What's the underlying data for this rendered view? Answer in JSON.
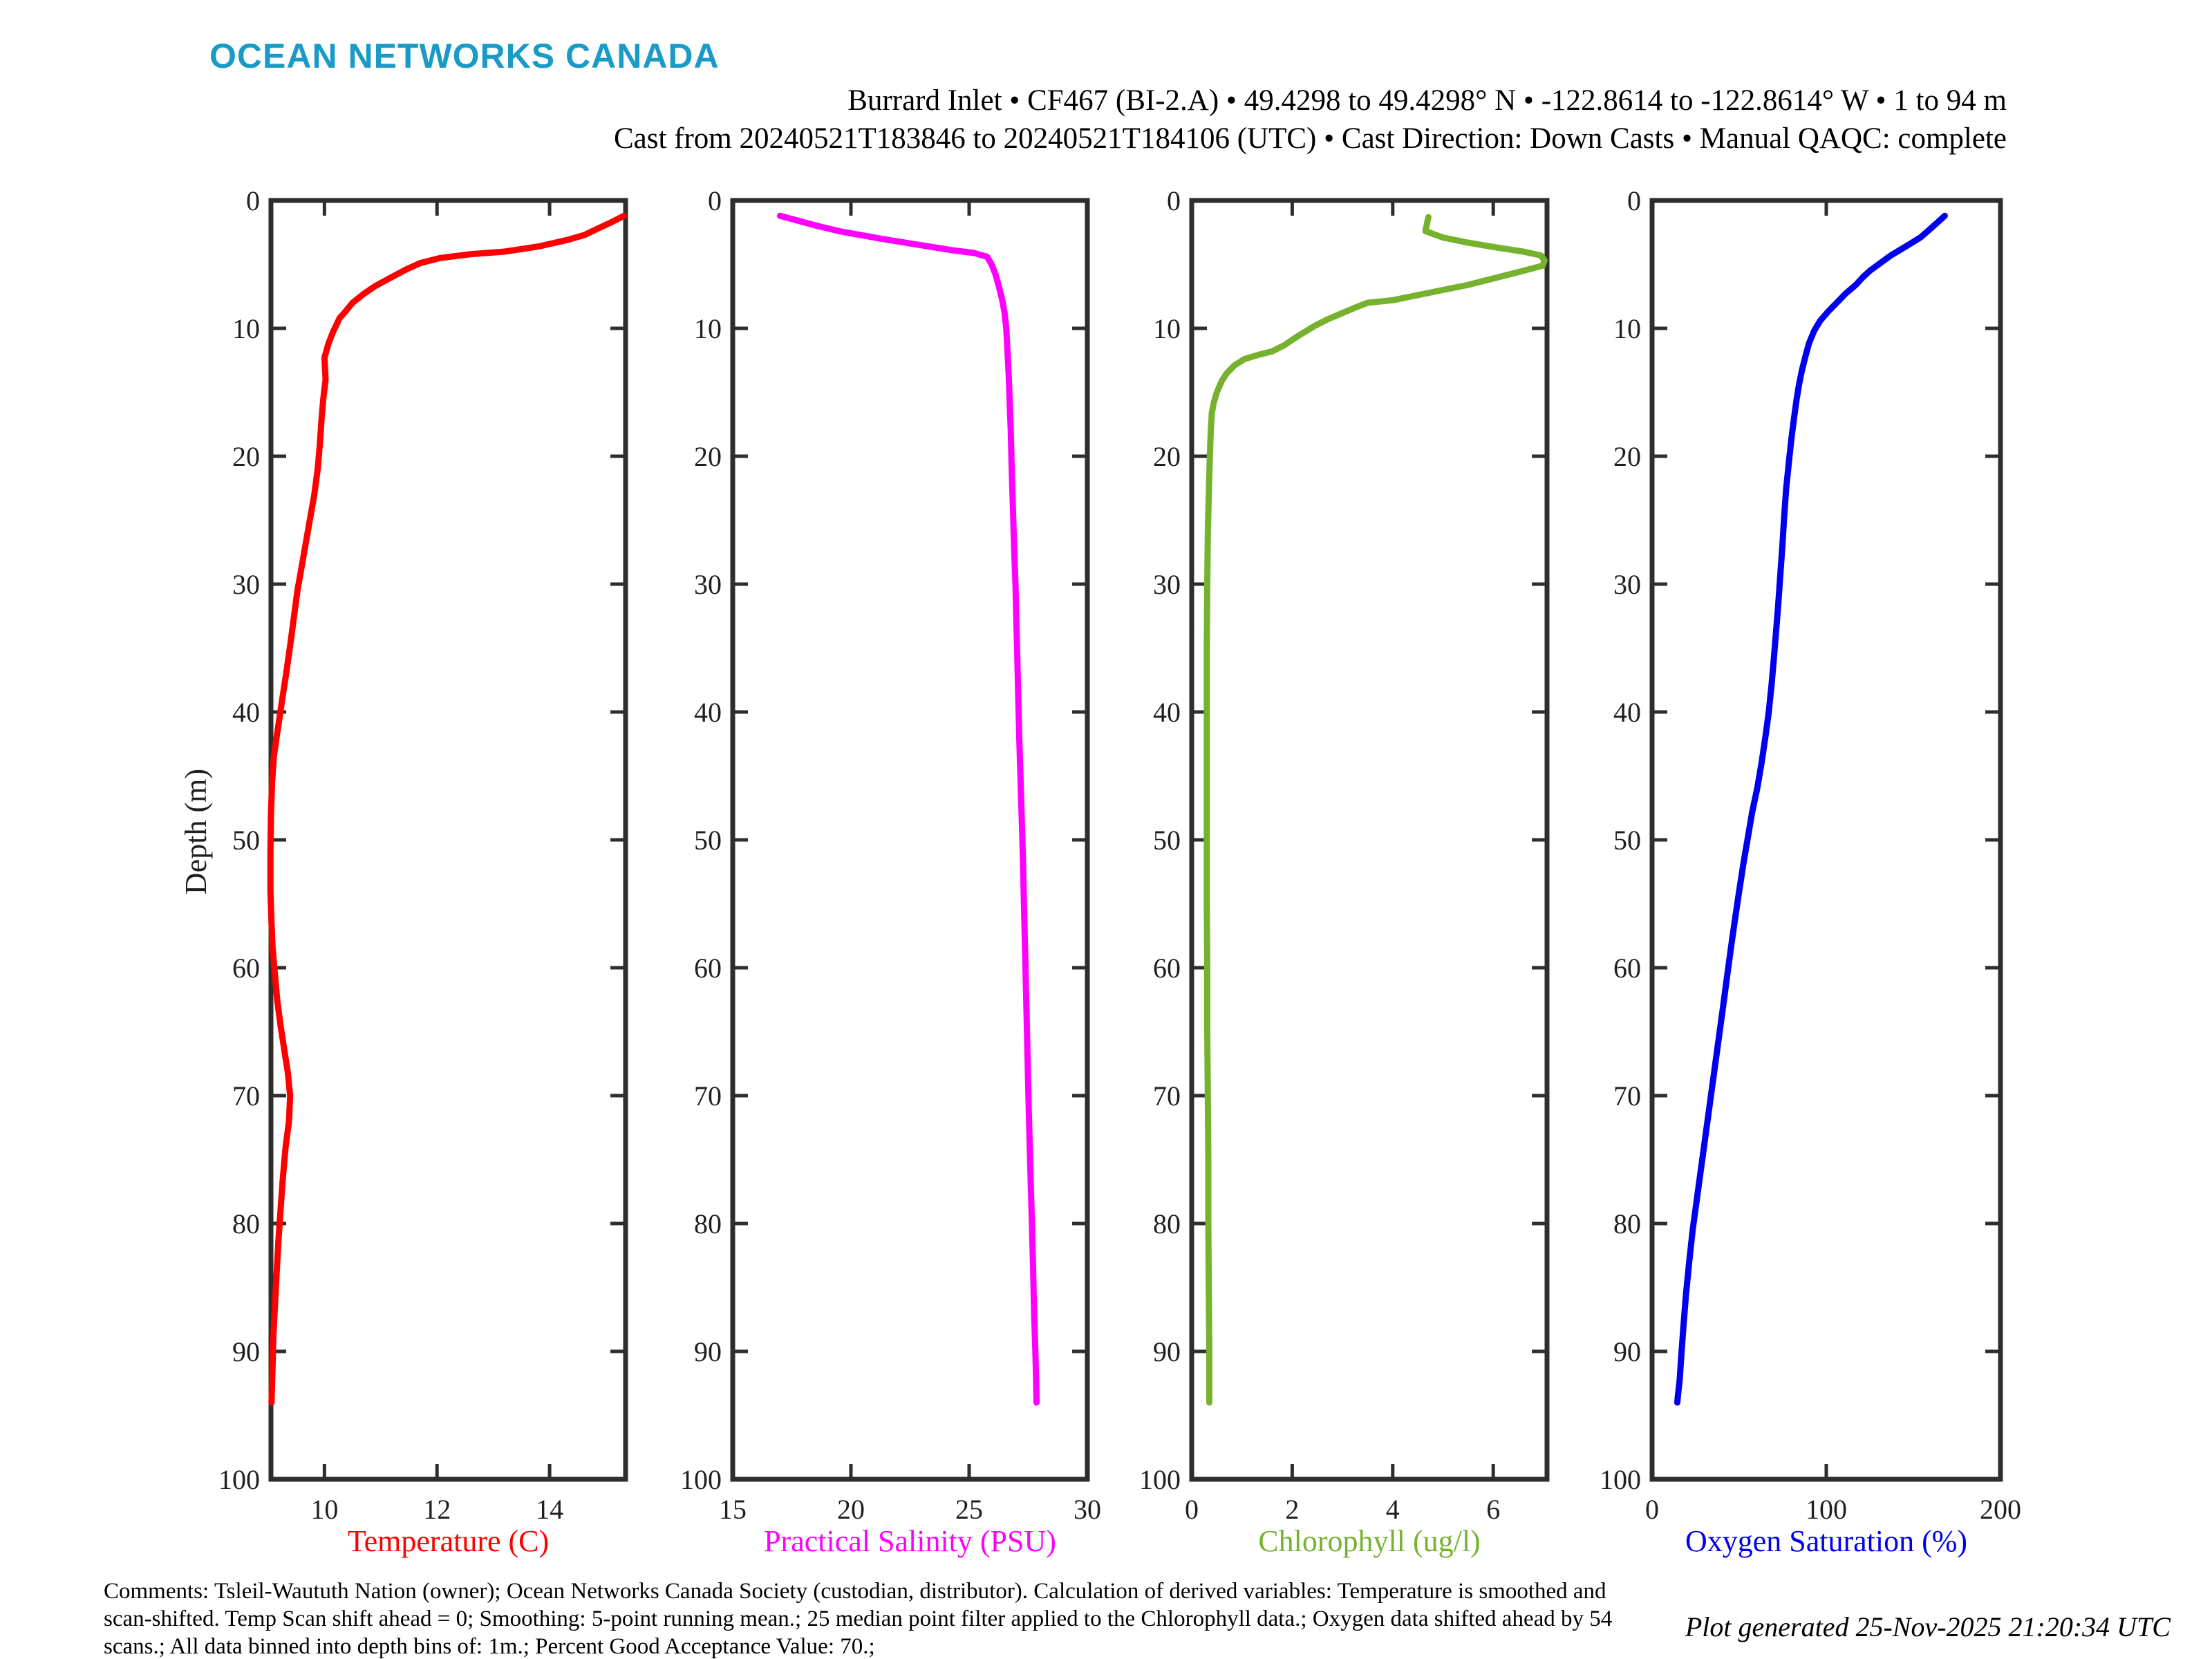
{
  "logo": {
    "text": "OCEAN NETWORKS CANADA",
    "color": "#1a9bc7"
  },
  "header": {
    "title_line1": "Burrard Inlet • CF467 (BI-2.A) • 49.4298 to 49.4298° N • -122.8614 to -122.8614° W • 1 to 94 m",
    "title_line2": "Cast from 20240521T183846 to 20240521T184106 (UTC) • Cast Direction: Down Casts • Manual QAQC: complete"
  },
  "footer": {
    "comment_line1": "Comments: Tsleil-Waututh Nation (owner); Ocean Networks Canada Society (custodian, distributor). Calculation of derived variables: Temperature is smoothed and",
    "comment_line2": "scan-shifted. Temp Scan shift ahead = 0; Smoothing: 5-point running mean.; 25 median point filter applied to the Chlorophyll data.; Oxygen data shifted ahead by 54",
    "comment_line3": "scans.; All data binned into depth bins of: 1m.; Percent Good Acceptance Value: 70.;",
    "generated": "Plot generated 25-Nov-2025 21:20:34 UTC"
  },
  "axes_style": {
    "frame_color": "#2e2e2e",
    "tick_label_color": "#1f1f1f",
    "grid": false
  },
  "chart_data": [
    {
      "name": "temperature",
      "type": "line",
      "xlabel": "Temperature (C)",
      "color": "#ff0000",
      "xlim": [
        9.05,
        15.35
      ],
      "xticks": [
        10,
        12,
        14
      ],
      "ylabel": "Depth (m)",
      "ylim": [
        0,
        100
      ],
      "yticks": [
        0,
        10,
        20,
        30,
        40,
        50,
        60,
        70,
        80,
        90,
        100
      ],
      "y_increases_downward": true,
      "points": [
        [
          15.32,
          1.2
        ],
        [
          15.1,
          1.7
        ],
        [
          14.9,
          2.1
        ],
        [
          14.62,
          2.7
        ],
        [
          14.3,
          3.1
        ],
        [
          13.8,
          3.6
        ],
        [
          13.2,
          4.0
        ],
        [
          12.6,
          4.2
        ],
        [
          12.05,
          4.5
        ],
        [
          11.7,
          4.9
        ],
        [
          11.45,
          5.4
        ],
        [
          11.15,
          6.1
        ],
        [
          10.9,
          6.7
        ],
        [
          10.7,
          7.3
        ],
        [
          10.5,
          8.0
        ],
        [
          10.35,
          8.8
        ],
        [
          10.27,
          9.2
        ],
        [
          10.15,
          10.3
        ],
        [
          10.07,
          11.2
        ],
        [
          10.0,
          12.3
        ],
        [
          10.02,
          14.0
        ],
        [
          9.98,
          15.5
        ],
        [
          9.95,
          17.0
        ],
        [
          9.92,
          19.0
        ],
        [
          9.88,
          21.0
        ],
        [
          9.82,
          23.0
        ],
        [
          9.74,
          25.0
        ],
        [
          9.66,
          27.0
        ],
        [
          9.58,
          29.0
        ],
        [
          9.52,
          30.5
        ],
        [
          9.46,
          32.5
        ],
        [
          9.4,
          34.5
        ],
        [
          9.32,
          37.0
        ],
        [
          9.25,
          39.0
        ],
        [
          9.2,
          40.5
        ],
        [
          9.15,
          42.0
        ],
        [
          9.1,
          43.5
        ],
        [
          9.07,
          45.5
        ],
        [
          9.05,
          48.0
        ],
        [
          9.04,
          51.0
        ],
        [
          9.04,
          54.0
        ],
        [
          9.06,
          56.5
        ],
        [
          9.08,
          58.5
        ],
        [
          9.12,
          60.5
        ],
        [
          9.16,
          62.5
        ],
        [
          9.22,
          64.5
        ],
        [
          9.29,
          66.5
        ],
        [
          9.35,
          68.2
        ],
        [
          9.39,
          70.0
        ],
        [
          9.37,
          72.0
        ],
        [
          9.31,
          74.0
        ],
        [
          9.26,
          76.5
        ],
        [
          9.22,
          79.0
        ],
        [
          9.18,
          81.5
        ],
        [
          9.15,
          84.0
        ],
        [
          9.12,
          86.5
        ],
        [
          9.09,
          89.0
        ],
        [
          9.08,
          91.0
        ],
        [
          9.07,
          92.5
        ],
        [
          9.06,
          94.0
        ]
      ]
    },
    {
      "name": "salinity",
      "type": "line",
      "xlabel": "Practical Salinity (PSU)",
      "color": "#ff00ff",
      "xlim": [
        15,
        30
      ],
      "xticks": [
        15,
        20,
        25,
        30
      ],
      "ylim": [
        0,
        100
      ],
      "yticks": [
        0,
        10,
        20,
        30,
        40,
        50,
        60,
        70,
        80,
        90,
        100
      ],
      "y_increases_downward": true,
      "points": [
        [
          17.0,
          1.2
        ],
        [
          17.8,
          1.6
        ],
        [
          18.6,
          2.0
        ],
        [
          19.5,
          2.4
        ],
        [
          20.4,
          2.7
        ],
        [
          21.3,
          3.0
        ],
        [
          22.3,
          3.3
        ],
        [
          23.3,
          3.6
        ],
        [
          24.3,
          3.9
        ],
        [
          25.2,
          4.1
        ],
        [
          25.76,
          4.4
        ],
        [
          25.95,
          5.0
        ],
        [
          26.12,
          5.8
        ],
        [
          26.27,
          6.8
        ],
        [
          26.4,
          7.8
        ],
        [
          26.5,
          8.8
        ],
        [
          26.57,
          10.0
        ],
        [
          26.63,
          12.0
        ],
        [
          26.68,
          14.0
        ],
        [
          26.72,
          16.0
        ],
        [
          26.76,
          18.0
        ],
        [
          26.8,
          21.0
        ],
        [
          26.85,
          24.0
        ],
        [
          26.9,
          27.0
        ],
        [
          26.96,
          30.0
        ],
        [
          27.0,
          33.0
        ],
        [
          27.04,
          36.0
        ],
        [
          27.08,
          39.0
        ],
        [
          27.12,
          42.0
        ],
        [
          27.17,
          45.0
        ],
        [
          27.22,
          48.0
        ],
        [
          27.27,
          51.0
        ],
        [
          27.32,
          55.0
        ],
        [
          27.37,
          59.0
        ],
        [
          27.42,
          63.0
        ],
        [
          27.47,
          67.0
        ],
        [
          27.52,
          71.0
        ],
        [
          27.58,
          75.0
        ],
        [
          27.64,
          79.0
        ],
        [
          27.7,
          83.0
        ],
        [
          27.75,
          87.0
        ],
        [
          27.8,
          90.0
        ],
        [
          27.83,
          92.0
        ],
        [
          27.85,
          94.0
        ]
      ]
    },
    {
      "name": "chlorophyll",
      "type": "line",
      "xlabel": "Chlorophyll (ug/l)",
      "color": "#77b22e",
      "xlim": [
        0,
        7.07
      ],
      "xticks": [
        0,
        2,
        4,
        6
      ],
      "ylim": [
        0,
        100
      ],
      "yticks": [
        0,
        10,
        20,
        30,
        40,
        50,
        60,
        70,
        80,
        90,
        100
      ],
      "y_increases_downward": true,
      "points": [
        [
          4.71,
          1.3
        ],
        [
          4.65,
          2.4
        ],
        [
          5.0,
          2.9
        ],
        [
          5.5,
          3.3
        ],
        [
          6.1,
          3.7
        ],
        [
          6.6,
          4.0
        ],
        [
          6.95,
          4.3
        ],
        [
          7.02,
          4.7
        ],
        [
          6.98,
          5.1
        ],
        [
          6.5,
          5.6
        ],
        [
          6.0,
          6.1
        ],
        [
          5.5,
          6.6
        ],
        [
          5.0,
          7.0
        ],
        [
          4.5,
          7.4
        ],
        [
          4.0,
          7.8
        ],
        [
          3.5,
          8.0
        ],
        [
          3.3,
          8.3
        ],
        [
          3.0,
          8.8
        ],
        [
          2.7,
          9.3
        ],
        [
          2.45,
          9.8
        ],
        [
          2.2,
          10.4
        ],
        [
          2.0,
          10.9
        ],
        [
          1.85,
          11.3
        ],
        [
          1.6,
          11.8
        ],
        [
          1.3,
          12.1
        ],
        [
          1.05,
          12.4
        ],
        [
          0.85,
          12.9
        ],
        [
          0.7,
          13.5
        ],
        [
          0.6,
          14.1
        ],
        [
          0.5,
          15.0
        ],
        [
          0.44,
          15.8
        ],
        [
          0.4,
          16.6
        ],
        [
          0.38,
          18.0
        ],
        [
          0.36,
          20.0
        ],
        [
          0.34,
          23.0
        ],
        [
          0.32,
          26.0
        ],
        [
          0.31,
          30.0
        ],
        [
          0.3,
          35.0
        ],
        [
          0.3,
          40.0
        ],
        [
          0.3,
          45.0
        ],
        [
          0.3,
          50.0
        ],
        [
          0.3,
          55.0
        ],
        [
          0.31,
          60.0
        ],
        [
          0.31,
          65.0
        ],
        [
          0.32,
          70.0
        ],
        [
          0.33,
          75.0
        ],
        [
          0.33,
          80.0
        ],
        [
          0.34,
          85.0
        ],
        [
          0.35,
          90.0
        ],
        [
          0.35,
          94.0
        ]
      ]
    },
    {
      "name": "oxygen-saturation",
      "type": "line",
      "xlabel": "Oxygen Saturation (%)",
      "color": "#0000ee",
      "xlim": [
        0,
        200
      ],
      "xticks": [
        0,
        100,
        200
      ],
      "ylim": [
        0,
        100
      ],
      "yticks": [
        0,
        10,
        20,
        30,
        40,
        50,
        60,
        70,
        80,
        90,
        100
      ],
      "y_increases_downward": true,
      "points": [
        [
          168,
          1.2
        ],
        [
          164,
          1.7
        ],
        [
          159,
          2.3
        ],
        [
          154,
          2.9
        ],
        [
          148,
          3.4
        ],
        [
          142,
          3.9
        ],
        [
          137,
          4.3
        ],
        [
          131,
          4.9
        ],
        [
          125,
          5.5
        ],
        [
          121,
          6.0
        ],
        [
          117,
          6.6
        ],
        [
          111,
          7.3
        ],
        [
          106,
          8.0
        ],
        [
          101,
          8.7
        ],
        [
          96.5,
          9.4
        ],
        [
          93,
          10.2
        ],
        [
          90,
          11.2
        ],
        [
          88,
          12.2
        ],
        [
          86,
          13.3
        ],
        [
          84.5,
          14.3
        ],
        [
          83,
          15.5
        ],
        [
          81.5,
          17.0
        ],
        [
          80,
          18.6
        ],
        [
          78.5,
          20.5
        ],
        [
          77,
          22.5
        ],
        [
          75.8,
          24.8
        ],
        [
          74.8,
          27.0
        ],
        [
          73.5,
          29.5
        ],
        [
          72.3,
          31.8
        ],
        [
          71,
          34.0
        ],
        [
          69.8,
          36.0
        ],
        [
          68.5,
          38.0
        ],
        [
          67,
          40.0
        ],
        [
          65,
          42.0
        ],
        [
          62.8,
          44.0
        ],
        [
          60.3,
          46.0
        ],
        [
          57.5,
          47.8
        ],
        [
          55,
          49.8
        ],
        [
          52.5,
          51.8
        ],
        [
          50,
          54.0
        ],
        [
          47.8,
          56.0
        ],
        [
          45.5,
          58.2
        ],
        [
          43.2,
          60.5
        ],
        [
          40.8,
          63.0
        ],
        [
          38.3,
          65.5
        ],
        [
          35.8,
          68.0
        ],
        [
          33.3,
          70.5
        ],
        [
          30.8,
          73.0
        ],
        [
          28.3,
          75.5
        ],
        [
          25.8,
          78.0
        ],
        [
          23.3,
          80.5
        ],
        [
          21.3,
          83.0
        ],
        [
          19.5,
          85.5
        ],
        [
          18.0,
          88.0
        ],
        [
          16.8,
          90.3
        ],
        [
          15.8,
          92.3
        ],
        [
          14.8,
          93.5
        ],
        [
          14.5,
          94.0
        ]
      ]
    }
  ]
}
